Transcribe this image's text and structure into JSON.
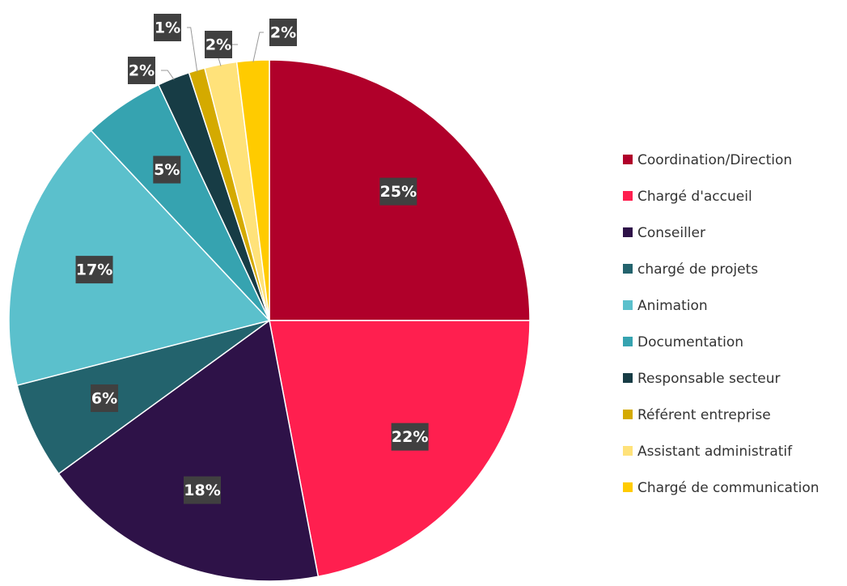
{
  "chart_data": {
    "type": "pie",
    "categories": [
      "Coordination/Direction",
      "Chargé d'accueil",
      "Conseiller",
      "chargé de projets",
      "Animation",
      "Documentation",
      "Responsable secteur",
      "Référent entreprise",
      "Assistant administratif",
      "Chargé de communication"
    ],
    "values": [
      25,
      22,
      18,
      6,
      17,
      5,
      2,
      1,
      2,
      2
    ],
    "value_labels": [
      "25%",
      "22%",
      "18%",
      "6%",
      "17%",
      "5%",
      "2%",
      "1%",
      "2%",
      "2%"
    ],
    "colors": [
      "#b0002a",
      "#ff1f4f",
      "#2e1248",
      "#23636d",
      "#5bc0cc",
      "#36a3b0",
      "#173c45",
      "#d4aa00",
      "#ffe27a",
      "#ffcb00"
    ],
    "legend": "right"
  }
}
